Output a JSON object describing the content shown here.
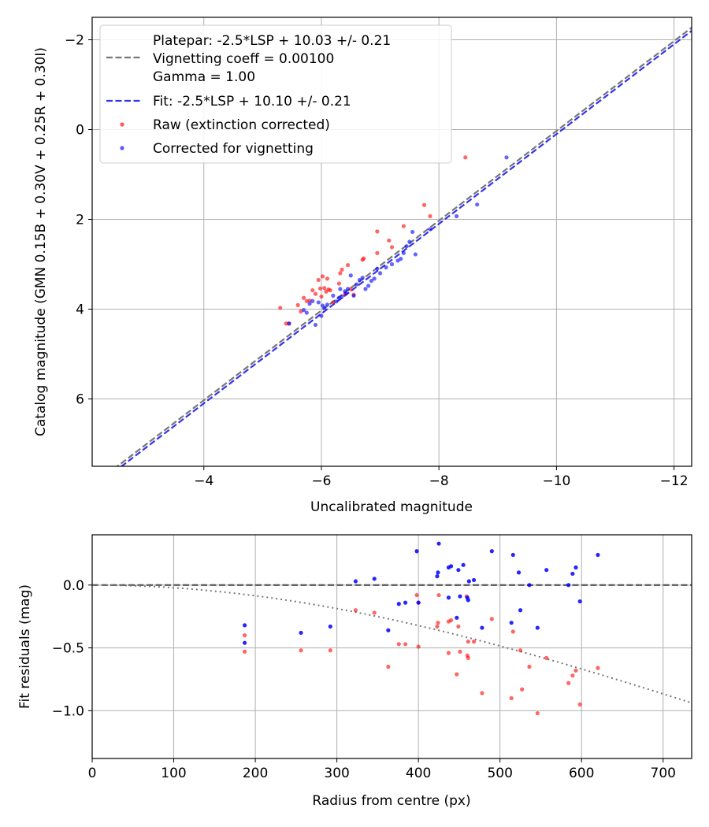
{
  "chart_data": [
    {
      "type": "scatter",
      "xlabel": "Uncalibrated magnitude",
      "ylabel": "Catalog magnitude (GMN 0.15B + 0.30V + 0.25R + 0.30I)",
      "xlim": [
        -2.1,
        -12.3
      ],
      "ylim": [
        7.5,
        -2.5
      ],
      "x_inverted": true,
      "y_inverted": true,
      "grid": true,
      "legend_position": "top-left",
      "xticks": [
        -4,
        -6,
        -8,
        -10,
        -12
      ],
      "yticks": [
        -2,
        0,
        2,
        4,
        6
      ],
      "xtick_labels": [
        "−4",
        "−6",
        "−8",
        "−10",
        "−12"
      ],
      "ytick_labels": [
        "−2",
        "0",
        "2",
        "4",
        "6"
      ],
      "lines": [
        {
          "name": "platepar",
          "label_lines": [
            "Platepar: -2.5*LSP + 10.03 +/- 0.21",
            "Vignetting coeff = 0.00100",
            "Gamma = 1.00"
          ],
          "offset": 10.03,
          "color": "#777777",
          "style": "dashed"
        },
        {
          "name": "fit",
          "label_lines": [
            "Fit: -2.5*LSP + 10.10 +/- 0.21"
          ],
          "offset": 10.1,
          "color": "#3333ee",
          "style": "dashed"
        }
      ],
      "series": [
        {
          "name": "Raw (extinction corrected)",
          "color": "#ff0000",
          "points": [
            [
              -5.3,
              3.97
            ],
            [
              -5.4,
              4.32
            ],
            [
              -5.45,
              4.32
            ],
            [
              -5.6,
              3.91
            ],
            [
              -5.65,
              4.05
            ],
            [
              -5.7,
              3.75
            ],
            [
              -5.75,
              3.82
            ],
            [
              -5.8,
              3.81
            ],
            [
              -5.85,
              3.58
            ],
            [
              -5.9,
              3.66
            ],
            [
              -5.95,
              3.35
            ],
            [
              -5.98,
              3.54
            ],
            [
              -6.0,
              3.72
            ],
            [
              -6.02,
              3.27
            ],
            [
              -6.05,
              3.53
            ],
            [
              -6.08,
              3.61
            ],
            [
              -6.1,
              3.32
            ],
            [
              -6.12,
              3.56
            ],
            [
              -6.15,
              3.58
            ],
            [
              -6.2,
              3.85
            ],
            [
              -6.3,
              3.43
            ],
            [
              -6.32,
              3.2
            ],
            [
              -6.35,
              3.12
            ],
            [
              -6.4,
              3.67
            ],
            [
              -6.45,
              3.02
            ],
            [
              -6.5,
              3.55
            ],
            [
              -6.55,
              3.68
            ],
            [
              -6.7,
              2.9
            ],
            [
              -6.72,
              2.87
            ],
            [
              -6.95,
              2.75
            ],
            [
              -6.95,
              2.27
            ],
            [
              -7.15,
              2.47
            ],
            [
              -7.2,
              2.62
            ],
            [
              -7.4,
              2.15
            ],
            [
              -7.75,
              1.68
            ],
            [
              -7.85,
              1.93
            ],
            [
              -8.45,
              0.62
            ]
          ]
        },
        {
          "name": "Corrected for vignetting",
          "color": "#0000ff",
          "points": [
            [
              -5.45,
              4.32
            ],
            [
              -5.7,
              4.02
            ],
            [
              -5.75,
              4.08
            ],
            [
              -5.8,
              3.88
            ],
            [
              -5.85,
              3.82
            ],
            [
              -5.9,
              4.35
            ],
            [
              -5.95,
              3.85
            ],
            [
              -6.0,
              4.15
            ],
            [
              -6.02,
              3.92
            ],
            [
              -6.05,
              3.97
            ],
            [
              -6.1,
              3.9
            ],
            [
              -6.2,
              3.7
            ],
            [
              -6.25,
              3.83
            ],
            [
              -6.3,
              3.75
            ],
            [
              -6.32,
              3.55
            ],
            [
              -6.35,
              3.72
            ],
            [
              -6.4,
              3.6
            ],
            [
              -6.42,
              3.65
            ],
            [
              -6.45,
              3.55
            ],
            [
              -6.5,
              3.25
            ],
            [
              -6.55,
              3.7
            ],
            [
              -6.6,
              3.45
            ],
            [
              -6.65,
              3.35
            ],
            [
              -6.7,
              3.3
            ],
            [
              -6.75,
              3.55
            ],
            [
              -6.8,
              3.48
            ],
            [
              -6.85,
              3.37
            ],
            [
              -6.9,
              3.32
            ],
            [
              -6.95,
              3.1
            ],
            [
              -7.0,
              3.2
            ],
            [
              -7.1,
              3.07
            ],
            [
              -7.2,
              3.0
            ],
            [
              -7.3,
              2.92
            ],
            [
              -7.35,
              2.88
            ],
            [
              -7.4,
              2.75
            ],
            [
              -7.45,
              2.6
            ],
            [
              -7.5,
              2.5
            ],
            [
              -7.55,
              2.28
            ],
            [
              -7.6,
              2.78
            ],
            [
              -7.85,
              2.22
            ],
            [
              -8.3,
              1.93
            ],
            [
              -8.65,
              1.67
            ],
            [
              -9.15,
              0.62
            ]
          ]
        }
      ]
    },
    {
      "type": "scatter",
      "xlabel": "Radius from centre (px)",
      "ylabel": "Fit residuals (mag)",
      "xlim": [
        0,
        735
      ],
      "ylim": [
        -1.38,
        0.4
      ],
      "grid": true,
      "xticks": [
        0,
        100,
        200,
        300,
        400,
        500,
        600,
        700
      ],
      "yticks": [
        0.0,
        -0.5,
        -1.0
      ],
      "xtick_labels": [
        "0",
        "100",
        "200",
        "300",
        "400",
        "500",
        "600",
        "700"
      ],
      "ytick_labels": [
        "0.0",
        "−0.5",
        "−1.0"
      ],
      "reference_lines": [
        {
          "name": "zero",
          "value": 0.0,
          "color": "#555555",
          "style": "dashed"
        },
        {
          "name": "vignetting-curve",
          "coeff": 0.001,
          "color": "#777777",
          "style": "dotted"
        }
      ],
      "series": [
        {
          "name": "Raw (extinction corrected)",
          "color": "#ff0000",
          "points": [
            [
              187,
              -0.4
            ],
            [
              187,
              -0.53
            ],
            [
              256,
              -0.52
            ],
            [
              292,
              -0.52
            ],
            [
              323,
              -0.2
            ],
            [
              346,
              -0.22
            ],
            [
              363,
              -0.65
            ],
            [
              376,
              -0.47
            ],
            [
              384,
              -0.47
            ],
            [
              398,
              -0.08
            ],
            [
              400,
              -0.49
            ],
            [
              400,
              -0.14
            ],
            [
              423,
              -0.33
            ],
            [
              424,
              -0.3
            ],
            [
              425,
              -0.08
            ],
            [
              437,
              -0.29
            ],
            [
              437,
              -0.54
            ],
            [
              440,
              -0.28
            ],
            [
              447,
              -0.71
            ],
            [
              449,
              -0.33
            ],
            [
              451,
              -0.53
            ],
            [
              459,
              -0.09
            ],
            [
              460,
              -0.56
            ],
            [
              461,
              -0.58
            ],
            [
              461,
              -0.45
            ],
            [
              468,
              -0.45
            ],
            [
              478,
              -0.86
            ],
            [
              490,
              -0.27
            ],
            [
              514,
              -0.9
            ],
            [
              516,
              -0.37
            ],
            [
              525,
              -0.52
            ],
            [
              527,
              -0.83
            ],
            [
              536,
              -0.65
            ],
            [
              546,
              -1.02
            ],
            [
              557,
              -0.58
            ],
            [
              584,
              -0.78
            ],
            [
              589,
              -0.72
            ],
            [
              593,
              -0.68
            ],
            [
              598,
              -0.95
            ],
            [
              620,
              -0.66
            ]
          ]
        },
        {
          "name": "Corrected for vignetting",
          "color": "#0000ff",
          "points": [
            [
              187,
              -0.32
            ],
            [
              187,
              -0.46
            ],
            [
              256,
              -0.38
            ],
            [
              292,
              -0.33
            ],
            [
              323,
              0.03
            ],
            [
              346,
              0.05
            ],
            [
              363,
              -0.36
            ],
            [
              376,
              -0.15
            ],
            [
              384,
              -0.14
            ],
            [
              398,
              0.27
            ],
            [
              400,
              -0.14
            ],
            [
              423,
              0.07
            ],
            [
              424,
              0.1
            ],
            [
              425,
              0.33
            ],
            [
              437,
              0.14
            ],
            [
              437,
              -0.1
            ],
            [
              440,
              0.15
            ],
            [
              447,
              -0.26
            ],
            [
              449,
              0.12
            ],
            [
              451,
              -0.09
            ],
            [
              455,
              0.16
            ],
            [
              460,
              -0.1
            ],
            [
              461,
              -0.12
            ],
            [
              462,
              0.03
            ],
            [
              468,
              0.04
            ],
            [
              478,
              -0.34
            ],
            [
              490,
              0.27
            ],
            [
              514,
              -0.3
            ],
            [
              516,
              0.24
            ],
            [
              523,
              0.1
            ],
            [
              525,
              -0.2
            ],
            [
              536,
              0.0
            ],
            [
              546,
              -0.34
            ],
            [
              557,
              0.12
            ],
            [
              584,
              0.0
            ],
            [
              589,
              0.09
            ],
            [
              593,
              0.14
            ],
            [
              598,
              -0.13
            ],
            [
              620,
              0.24
            ]
          ]
        }
      ]
    }
  ]
}
